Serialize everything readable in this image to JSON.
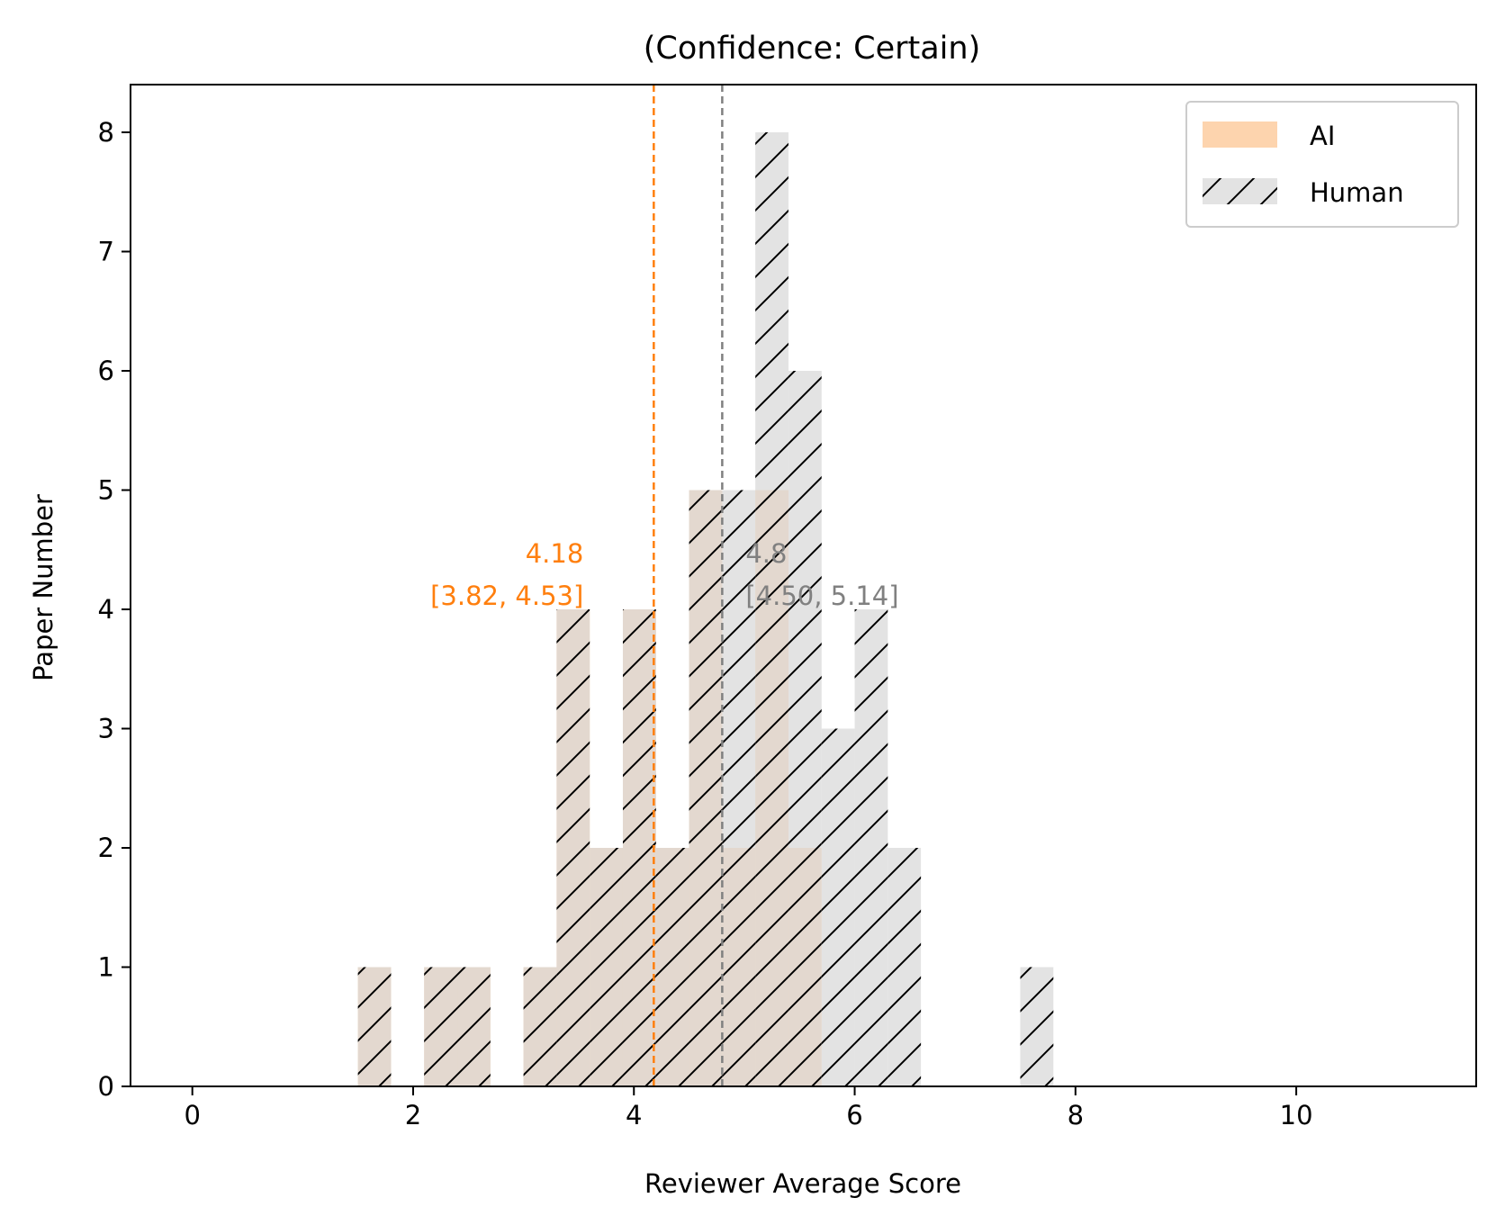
{
  "chart_data": {
    "type": "bar",
    "title": "(Confidence: Certain)",
    "xlabel": "Reviewer Average Score",
    "ylabel": "Paper Number",
    "xlim": [
      -0.56,
      11.63
    ],
    "ylim": [
      0,
      8.4
    ],
    "x_ticks": [
      0,
      2,
      4,
      6,
      8,
      10
    ],
    "y_ticks": [
      0,
      1,
      2,
      3,
      4,
      5,
      6,
      7,
      8
    ],
    "bin_width": 0.3,
    "grid": false,
    "legend_position": "top-right",
    "series": [
      {
        "name": "AI",
        "color": "#fdd4ae",
        "hatch": false,
        "bins": [
          {
            "x0": 1.5,
            "count": 1
          },
          {
            "x0": 2.1,
            "count": 1
          },
          {
            "x0": 2.4,
            "count": 1
          },
          {
            "x0": 3.0,
            "count": 1
          },
          {
            "x0": 3.3,
            "count": 4
          },
          {
            "x0": 3.6,
            "count": 2
          },
          {
            "x0": 3.9,
            "count": 4
          },
          {
            "x0": 4.2,
            "count": 2
          },
          {
            "x0": 4.5,
            "count": 5
          },
          {
            "x0": 4.8,
            "count": 2
          },
          {
            "x0": 5.1,
            "count": 5
          },
          {
            "x0": 5.4,
            "count": 2
          }
        ]
      },
      {
        "name": "Human",
        "color": "#d9d9d9",
        "hatch": true,
        "bins": [
          {
            "x0": 1.5,
            "count": 1
          },
          {
            "x0": 2.1,
            "count": 1
          },
          {
            "x0": 2.4,
            "count": 1
          },
          {
            "x0": 3.0,
            "count": 1
          },
          {
            "x0": 3.3,
            "count": 4
          },
          {
            "x0": 3.6,
            "count": 2
          },
          {
            "x0": 3.9,
            "count": 4
          },
          {
            "x0": 4.2,
            "count": 2
          },
          {
            "x0": 4.5,
            "count": 5
          },
          {
            "x0": 4.8,
            "count": 5
          },
          {
            "x0": 5.1,
            "count": 8
          },
          {
            "x0": 5.4,
            "count": 6
          },
          {
            "x0": 5.7,
            "count": 3
          },
          {
            "x0": 6.0,
            "count": 4
          },
          {
            "x0": 6.3,
            "count": 2
          },
          {
            "x0": 7.5,
            "count": 1
          }
        ]
      }
    ],
    "mean_lines": [
      {
        "series": "AI",
        "x": 4.18,
        "color": "#ff7f0e",
        "label": "4.18",
        "ci_label": "[3.82, 4.53]"
      },
      {
        "series": "Human",
        "x": 4.8,
        "color": "#808080",
        "label": "4.8",
        "ci_label": "[4.50, 5.14]"
      }
    ]
  }
}
